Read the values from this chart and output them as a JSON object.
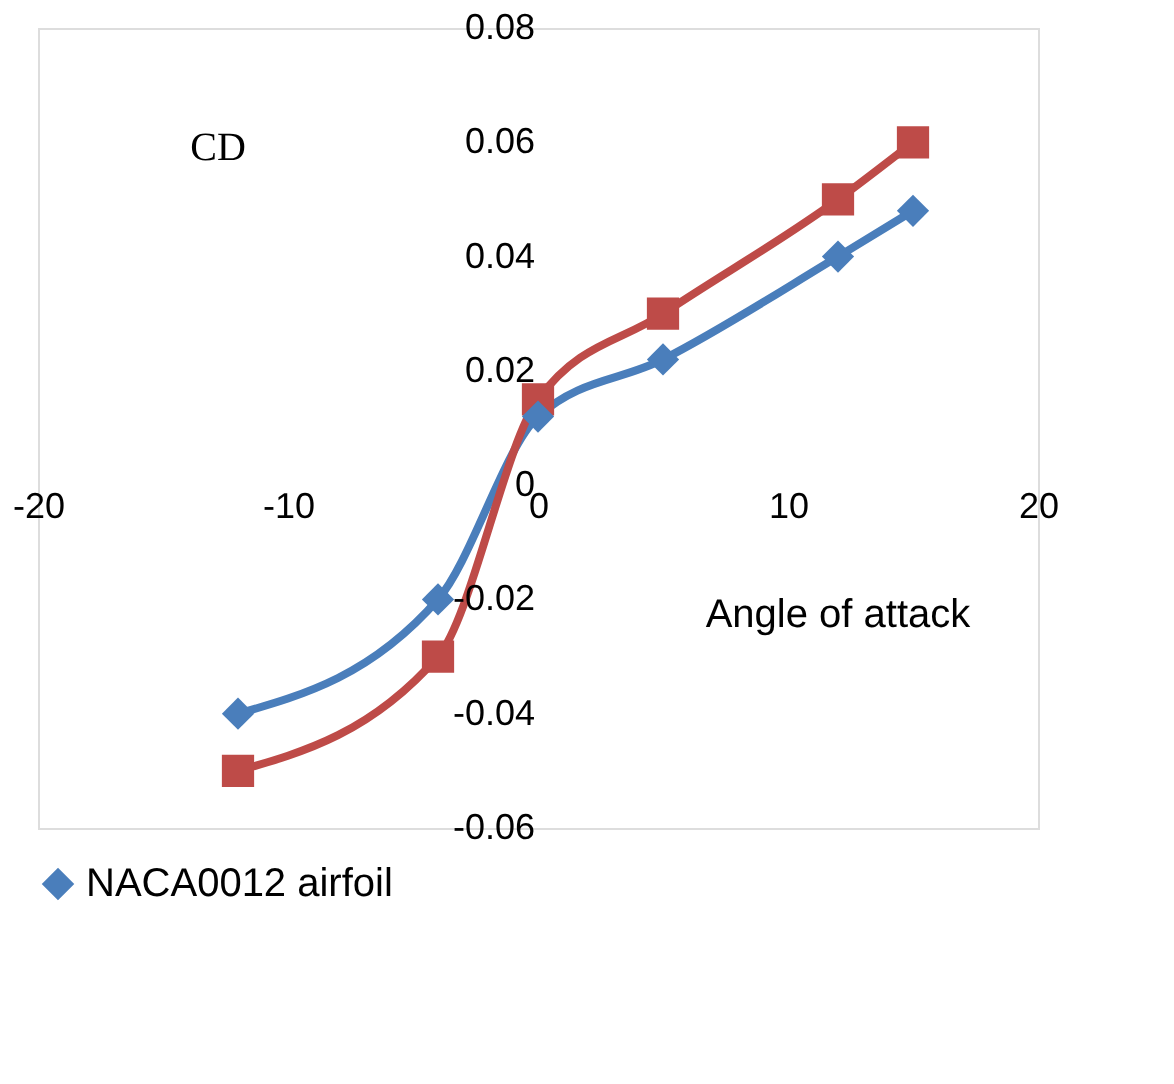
{
  "chart_data": {
    "type": "line",
    "xlabel": "Angle of attack",
    "ylabel": "CD",
    "x": [
      -12,
      -4,
      0,
      5,
      12,
      15
    ],
    "series": [
      {
        "name": "NACA0012 airfoil",
        "color": "#4a7ebb",
        "marker": "diamond",
        "values": [
          -0.04,
          -0.02,
          0.012,
          0.022,
          0.04,
          0.048
        ]
      },
      {
        "color": "#be4b48",
        "marker": "square",
        "values": [
          -0.05,
          -0.03,
          0.015,
          0.03,
          0.05,
          0.06
        ]
      }
    ],
    "xlim": [
      -20,
      20
    ],
    "xticks": [
      -20,
      -10,
      0,
      10,
      20
    ],
    "ylim": [
      -0.06,
      0.08
    ],
    "yticks": [
      -0.06,
      -0.04,
      -0.02,
      0,
      0.02,
      0.04,
      0.06,
      0.08
    ],
    "grid": false,
    "legend": "bottom",
    "line_style": "solid"
  }
}
